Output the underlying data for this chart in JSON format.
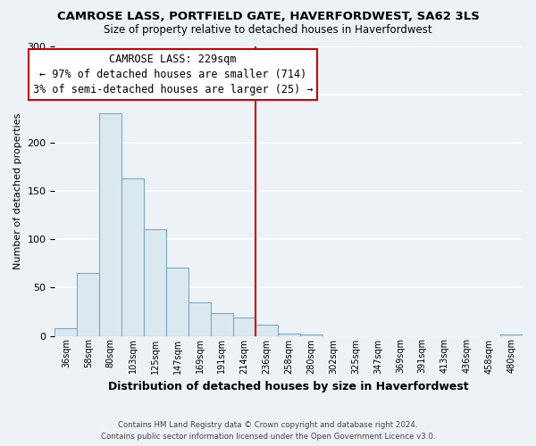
{
  "title": "CAMROSE LASS, PORTFIELD GATE, HAVERFORDWEST, SA62 3LS",
  "subtitle": "Size of property relative to detached houses in Haverfordwest",
  "xlabel": "Distribution of detached houses by size in Haverfordwest",
  "ylabel": "Number of detached properties",
  "bar_labels": [
    "36sqm",
    "58sqm",
    "80sqm",
    "103sqm",
    "125sqm",
    "147sqm",
    "169sqm",
    "191sqm",
    "214sqm",
    "236sqm",
    "258sqm",
    "280sqm",
    "302sqm",
    "325sqm",
    "347sqm",
    "369sqm",
    "391sqm",
    "413sqm",
    "436sqm",
    "458sqm",
    "480sqm"
  ],
  "bar_heights": [
    8,
    65,
    230,
    163,
    110,
    71,
    35,
    24,
    19,
    12,
    2,
    1,
    0,
    0,
    0,
    0,
    0,
    0,
    0,
    0,
    1
  ],
  "bar_color": "#dce8f0",
  "bar_edge_color": "#7aaac8",
  "vline_x_index": 8.5,
  "vline_color": "#cc0000",
  "annotation_title": "CAMROSE LASS: 229sqm",
  "annotation_line1": "← 97% of detached houses are smaller (714)",
  "annotation_line2": "3% of semi-detached houses are larger (25) →",
  "annotation_box_color": "#ffffff",
  "annotation_box_edge": "#cc0000",
  "ylim": [
    0,
    300
  ],
  "footer1": "Contains HM Land Registry data © Crown copyright and database right 2024.",
  "footer2": "Contains public sector information licensed under the Open Government Licence v3.0.",
  "background_color": "#edf2f7",
  "grid_color": "#ffffff",
  "title_fontsize": 9.5,
  "subtitle_fontsize": 8.5,
  "annotation_fontsize": 8.5,
  "ylabel_fontsize": 8,
  "xlabel_fontsize": 9
}
